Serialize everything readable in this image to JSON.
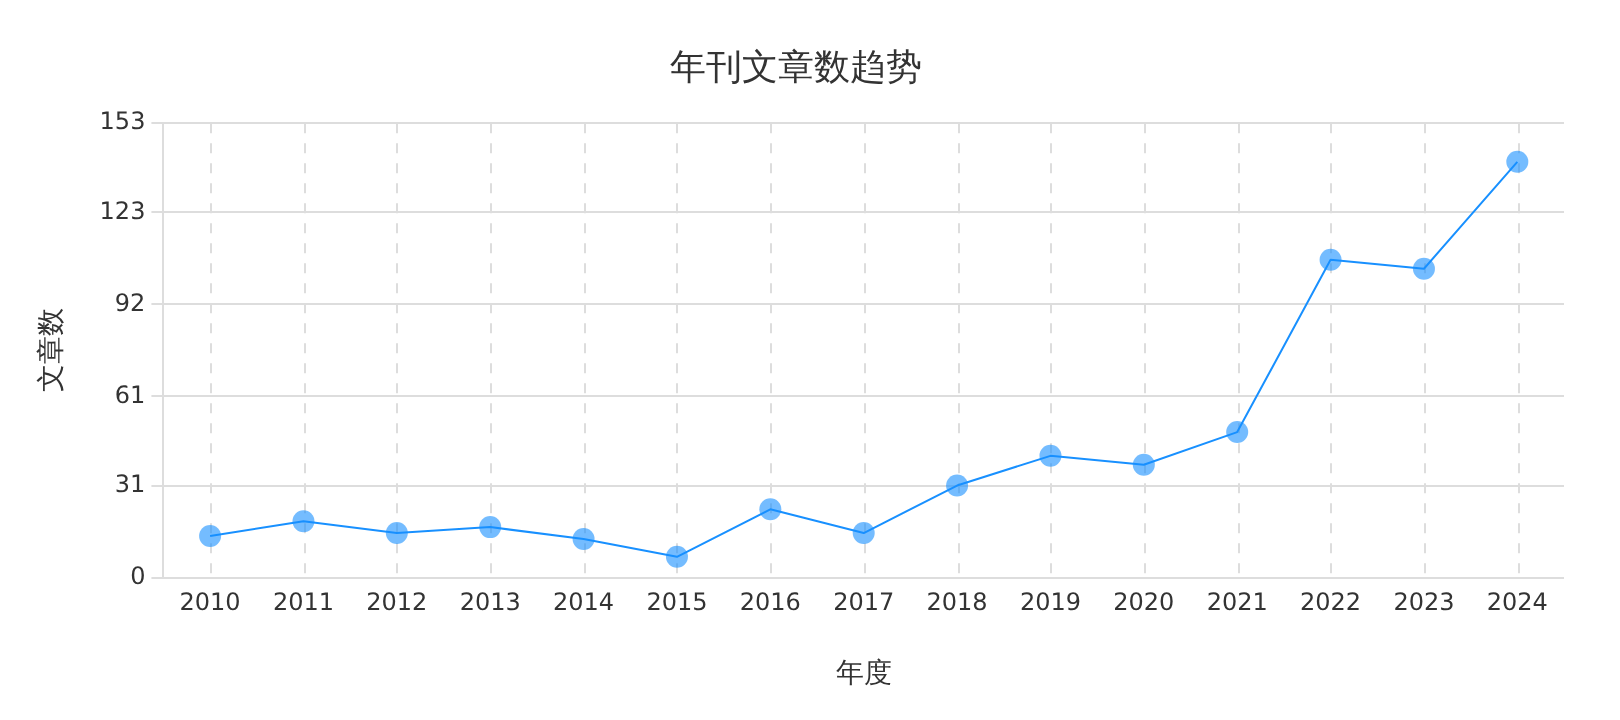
{
  "chart_data": {
    "type": "line",
    "title": "年刊文章数趋势",
    "xlabel": "年度",
    "ylabel": "文章数",
    "categories": [
      "2010",
      "2011",
      "2012",
      "2013",
      "2014",
      "2015",
      "2016",
      "2017",
      "2018",
      "2019",
      "2020",
      "2021",
      "2022",
      "2023",
      "2024"
    ],
    "series": [
      {
        "color": "#1890ff",
        "values": [
          14,
          19,
          15,
          17,
          13,
          7,
          23,
          15,
          31,
          41,
          38,
          49,
          107,
          104,
          140
        ]
      }
    ],
    "ylim": [
      0,
      153
    ],
    "yticks": [
      0,
      31,
      61,
      92,
      123,
      153
    ],
    "grid": true,
    "marker": "circle",
    "line_style": "solid"
  }
}
